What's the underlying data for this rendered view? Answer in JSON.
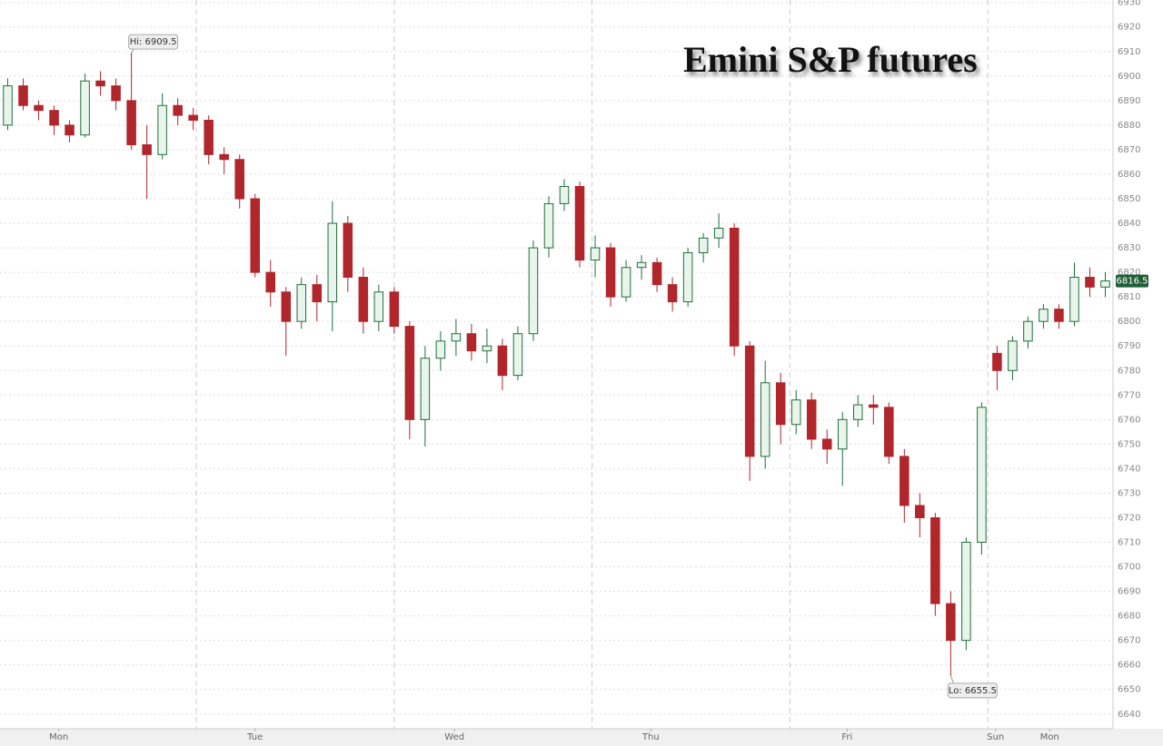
{
  "chart_data": {
    "type": "candlestick",
    "title": "Emini S&P futures",
    "up_color": "#1f6e3c",
    "down_color": "#b0262b",
    "ylim": [
      6634,
      6931
    ],
    "yticks": [
      6640,
      6650,
      6660,
      6670,
      6680,
      6690,
      6700,
      6710,
      6720,
      6730,
      6740,
      6750,
      6760,
      6770,
      6780,
      6790,
      6800,
      6810,
      6820,
      6830,
      6840,
      6850,
      6860,
      6870,
      6880,
      6890,
      6900,
      6910,
      6920,
      6930
    ],
    "xlim": [
      0,
      72
    ],
    "xticks": [
      {
        "value": 3.8,
        "label": "Mon"
      },
      {
        "value": 16.5,
        "label": "Tue"
      },
      {
        "value": 29.4,
        "label": "Wed"
      },
      {
        "value": 42.1,
        "label": "Thu"
      },
      {
        "value": 54.8,
        "label": "Fri"
      },
      {
        "value": 64.4,
        "label": "Sun"
      },
      {
        "value": 67.9,
        "label": "Mon"
      }
    ],
    "day_lines": [
      12.7,
      25.5,
      38.3,
      51.1,
      63.9
    ],
    "annotations": [
      {
        "label": "Hi: 6909.5",
        "value": 6909.5
      },
      {
        "label": "Lo: 6655.5",
        "value": 6655.5
      }
    ],
    "last_price": 6816.5,
    "candles": [
      {
        "o": 6880,
        "h": 6899,
        "l": 6878,
        "c": 6896
      },
      {
        "o": 6896,
        "h": 6899,
        "l": 6886,
        "c": 6888
      },
      {
        "o": 6888,
        "h": 6890,
        "l": 6882,
        "c": 6886
      },
      {
        "o": 6886,
        "h": 6888,
        "l": 6876,
        "c": 6880
      },
      {
        "o": 6880,
        "h": 6882,
        "l": 6873,
        "c": 6876
      },
      {
        "o": 6876,
        "h": 6901,
        "l": 6875,
        "c": 6898
      },
      {
        "o": 6898,
        "h": 6902,
        "l": 6892,
        "c": 6896
      },
      {
        "o": 6896,
        "h": 6899,
        "l": 6886,
        "c": 6890
      },
      {
        "o": 6890,
        "h": 6909.5,
        "l": 6870,
        "c": 6872
      },
      {
        "o": 6872,
        "h": 6880,
        "l": 6850,
        "c": 6868
      },
      {
        "o": 6868,
        "h": 6893,
        "l": 6866,
        "c": 6888
      },
      {
        "o": 6888,
        "h": 6891,
        "l": 6880,
        "c": 6884
      },
      {
        "o": 6884,
        "h": 6887,
        "l": 6878,
        "c": 6882
      },
      {
        "o": 6882,
        "h": 6884,
        "l": 6864,
        "c": 6868
      },
      {
        "o": 6868,
        "h": 6871,
        "l": 6860,
        "c": 6866
      },
      {
        "o": 6866,
        "h": 6868,
        "l": 6846,
        "c": 6850
      },
      {
        "o": 6850,
        "h": 6852,
        "l": 6818,
        "c": 6820
      },
      {
        "o": 6820,
        "h": 6825,
        "l": 6806,
        "c": 6812
      },
      {
        "o": 6812,
        "h": 6814,
        "l": 6786,
        "c": 6800
      },
      {
        "o": 6800,
        "h": 6818,
        "l": 6797,
        "c": 6815
      },
      {
        "o": 6815,
        "h": 6819,
        "l": 6800,
        "c": 6808
      },
      {
        "o": 6808,
        "h": 6849,
        "l": 6796,
        "c": 6840
      },
      {
        "o": 6840,
        "h": 6843,
        "l": 6812,
        "c": 6818
      },
      {
        "o": 6818,
        "h": 6822,
        "l": 6795,
        "c": 6800
      },
      {
        "o": 6800,
        "h": 6815,
        "l": 6796,
        "c": 6812
      },
      {
        "o": 6812,
        "h": 6814,
        "l": 6795,
        "c": 6798
      },
      {
        "o": 6798,
        "h": 6800,
        "l": 6752,
        "c": 6760
      },
      {
        "o": 6760,
        "h": 6790,
        "l": 6749,
        "c": 6785
      },
      {
        "o": 6785,
        "h": 6796,
        "l": 6780,
        "c": 6792
      },
      {
        "o": 6792,
        "h": 6801,
        "l": 6786,
        "c": 6795
      },
      {
        "o": 6795,
        "h": 6799,
        "l": 6784,
        "c": 6788
      },
      {
        "o": 6788,
        "h": 6797,
        "l": 6783,
        "c": 6790
      },
      {
        "o": 6790,
        "h": 6793,
        "l": 6772,
        "c": 6778
      },
      {
        "o": 6778,
        "h": 6798,
        "l": 6776,
        "c": 6795
      },
      {
        "o": 6795,
        "h": 6833,
        "l": 6792,
        "c": 6830
      },
      {
        "o": 6830,
        "h": 6851,
        "l": 6826,
        "c": 6848
      },
      {
        "o": 6848,
        "h": 6858,
        "l": 6845,
        "c": 6855
      },
      {
        "o": 6855,
        "h": 6857,
        "l": 6822,
        "c": 6825
      },
      {
        "o": 6825,
        "h": 6835,
        "l": 6818,
        "c": 6830
      },
      {
        "o": 6830,
        "h": 6832,
        "l": 6806,
        "c": 6810
      },
      {
        "o": 6810,
        "h": 6825,
        "l": 6808,
        "c": 6822
      },
      {
        "o": 6822,
        "h": 6827,
        "l": 6817,
        "c": 6824
      },
      {
        "o": 6824,
        "h": 6826,
        "l": 6812,
        "c": 6815
      },
      {
        "o": 6815,
        "h": 6818,
        "l": 6804,
        "c": 6808
      },
      {
        "o": 6808,
        "h": 6830,
        "l": 6806,
        "c": 6828
      },
      {
        "o": 6828,
        "h": 6836,
        "l": 6824,
        "c": 6834
      },
      {
        "o": 6834,
        "h": 6844,
        "l": 6830,
        "c": 6838
      },
      {
        "o": 6838,
        "h": 6840,
        "l": 6786,
        "c": 6790
      },
      {
        "o": 6790,
        "h": 6792,
        "l": 6735,
        "c": 6745
      },
      {
        "o": 6745,
        "h": 6784,
        "l": 6740,
        "c": 6775
      },
      {
        "o": 6775,
        "h": 6779,
        "l": 6750,
        "c": 6758
      },
      {
        "o": 6758,
        "h": 6772,
        "l": 6754,
        "c": 6768
      },
      {
        "o": 6768,
        "h": 6771,
        "l": 6748,
        "c": 6752
      },
      {
        "o": 6752,
        "h": 6756,
        "l": 6742,
        "c": 6748
      },
      {
        "o": 6748,
        "h": 6763,
        "l": 6733,
        "c": 6760
      },
      {
        "o": 6760,
        "h": 6770,
        "l": 6757,
        "c": 6766
      },
      {
        "o": 6766,
        "h": 6770,
        "l": 6758,
        "c": 6765
      },
      {
        "o": 6765,
        "h": 6767,
        "l": 6742,
        "c": 6745
      },
      {
        "o": 6745,
        "h": 6748,
        "l": 6718,
        "c": 6725
      },
      {
        "o": 6725,
        "h": 6730,
        "l": 6712,
        "c": 6720
      },
      {
        "o": 6720,
        "h": 6722,
        "l": 6680,
        "c": 6685
      },
      {
        "o": 6685,
        "h": 6690,
        "l": 6655.5,
        "c": 6670
      },
      {
        "o": 6670,
        "h": 6712,
        "l": 6666,
        "c": 6710
      },
      {
        "o": 6710,
        "h": 6767,
        "l": 6705,
        "c": 6765
      },
      {
        "o": 6787,
        "h": 6790,
        "l": 6772,
        "c": 6780
      },
      {
        "o": 6780,
        "h": 6794,
        "l": 6776,
        "c": 6792
      },
      {
        "o": 6792,
        "h": 6802,
        "l": 6789,
        "c": 6800
      },
      {
        "o": 6800,
        "h": 6807,
        "l": 6797,
        "c": 6805
      },
      {
        "o": 6805,
        "h": 6807,
        "l": 6797,
        "c": 6800
      },
      {
        "o": 6800,
        "h": 6824,
        "l": 6798,
        "c": 6818
      },
      {
        "o": 6818,
        "h": 6822,
        "l": 6810,
        "c": 6814
      },
      {
        "o": 6814,
        "h": 6820,
        "l": 6810,
        "c": 6816.5
      }
    ]
  }
}
